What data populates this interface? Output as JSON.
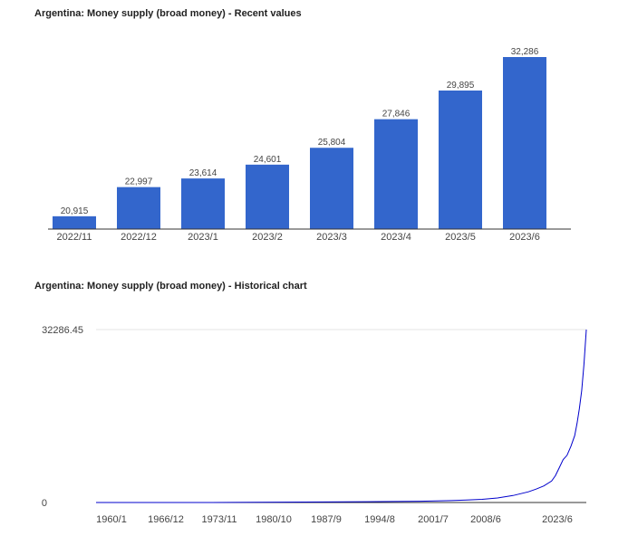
{
  "colors": {
    "bar": "#3366cc",
    "line": "#0000cc",
    "axis": "#333333",
    "grid": "#e6e6e6"
  },
  "chart_data": [
    {
      "type": "bar",
      "title": "Argentina: Money supply (broad money) - Recent values",
      "categories": [
        "2022/11",
        "2022/12",
        "2023/1",
        "2023/2",
        "2023/3",
        "2023/4",
        "2023/5",
        "2023/6"
      ],
      "values": [
        20915,
        22997,
        23614,
        24601,
        25804,
        27846,
        29895,
        32286
      ],
      "data_labels": [
        "20,915",
        "22,997",
        "23,614",
        "24,601",
        "25,804",
        "27,846",
        "29,895",
        "32,286"
      ],
      "ylim": [
        20000,
        32286
      ],
      "grid": false,
      "xlabel": "",
      "ylabel": ""
    },
    {
      "type": "line",
      "title": "Argentina: Money supply (broad money) - Historical chart",
      "x_ticks": [
        "1960/1",
        "1966/12",
        "1973/11",
        "1980/10",
        "1987/9",
        "1994/8",
        "2001/7",
        "2008/6",
        "2023/6"
      ],
      "y_ticks": [
        "32286.45",
        "0"
      ],
      "ylim": [
        0,
        32286.45
      ],
      "xlim": [
        1960.0,
        2023.5
      ],
      "series": [
        {
          "x": [
            1960.0,
            1975.0,
            1987.0,
            1995.0,
            2002.0,
            2006.0,
            2008.0,
            2010.0,
            2012.0,
            2014.0,
            2016.0,
            2017.0,
            2018.0,
            2019.0,
            2019.5,
            2020.0,
            2020.5,
            2021.0,
            2021.5,
            2022.0,
            2022.3,
            2022.6,
            2022.9,
            2023.2,
            2023.5
          ],
          "values": [
            0,
            0,
            80,
            150,
            230,
            350,
            450,
            600,
            850,
            1300,
            2000,
            2500,
            3100,
            4000,
            5000,
            6500,
            8000,
            8800,
            10500,
            12500,
            14800,
            17500,
            20900,
            25800,
            32286
          ]
        }
      ]
    }
  ]
}
